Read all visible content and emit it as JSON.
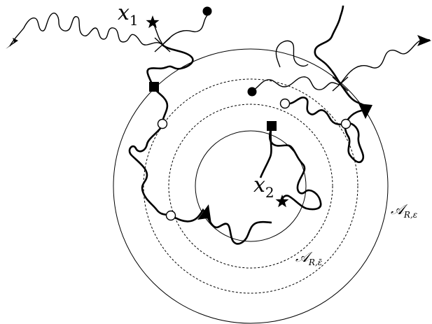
{
  "labels": {
    "x1": {
      "base": "x",
      "sub": "1"
    },
    "x2": {
      "base": "x",
      "sub": "2"
    },
    "annulus_outer": {
      "base": "𝒜",
      "sub": "R,ε"
    },
    "annulus_inner": {
      "base": "𝒜",
      "sub": "R,ε̄"
    }
  },
  "colors": {
    "ink": "#000000",
    "background": "#ffffff"
  },
  "icons": {
    "star": "star-marker",
    "dot": "filled-dot",
    "square": "filled-square",
    "open": "open-circle",
    "arrow": "arrowhead",
    "cross": "crossing"
  }
}
